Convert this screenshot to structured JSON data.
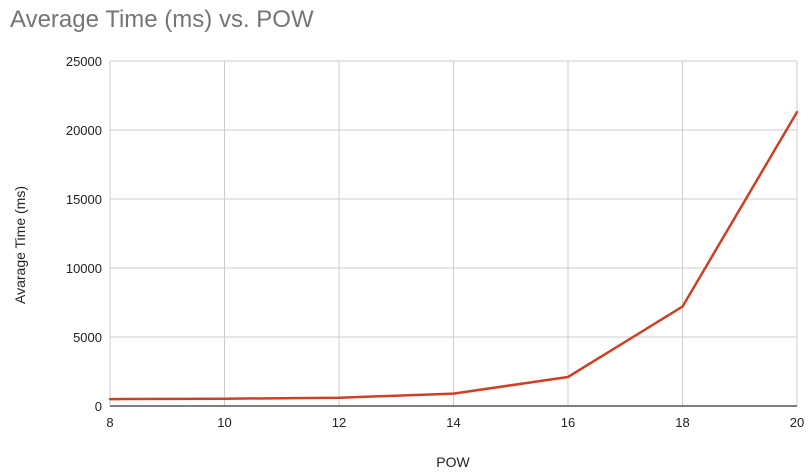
{
  "chart_data": {
    "type": "line",
    "title": "Average Time (ms) vs. POW",
    "xlabel": "POW",
    "ylabel": "Avarage Time (ms)",
    "x": [
      8,
      10,
      12,
      14,
      16,
      18,
      20
    ],
    "series": [
      {
        "values": [
          500,
          530,
          600,
          900,
          2100,
          7200,
          21300
        ],
        "color": "#cc4125"
      }
    ],
    "xticks": [
      "8",
      "10",
      "12",
      "14",
      "16",
      "18",
      "20"
    ],
    "yticks": [
      "0",
      "5000",
      "10000",
      "15000",
      "20000",
      "25000"
    ],
    "xlim": [
      8,
      20
    ],
    "ylim": [
      0,
      25000
    ],
    "grid": true,
    "legend": "none"
  }
}
